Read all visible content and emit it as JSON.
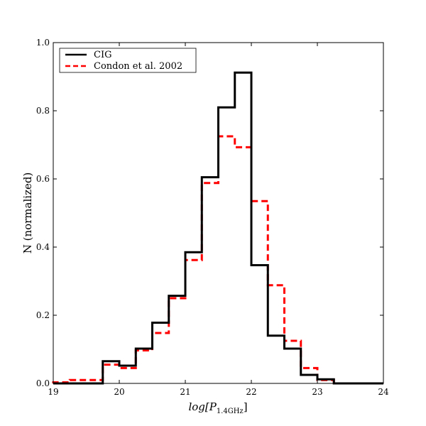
{
  "chart_data": {
    "type": "step-histogram",
    "title": "",
    "xlabel": "log[P",
    "xlabel_sub": "1.4GHz",
    "xlabel_close": "]",
    "ylabel": "N (normalized)",
    "xlim": [
      19,
      24
    ],
    "ylim": [
      0,
      1.0
    ],
    "xticks": [
      19,
      20,
      21,
      22,
      23,
      24
    ],
    "xtick_labels": [
      "19",
      "20",
      "21",
      "22",
      "23",
      "24"
    ],
    "yticks": [
      0,
      0.2,
      0.4,
      0.6,
      0.8,
      1.0
    ],
    "ytick_labels": [
      "0.0",
      "0.2",
      "0.4",
      "0.6",
      "0.8",
      "1.0"
    ],
    "legend_position": "top-left",
    "bin_edges": [
      19.0,
      19.25,
      19.5,
      19.75,
      20.0,
      20.25,
      20.5,
      20.75,
      21.0,
      21.25,
      21.5,
      21.75,
      22.0,
      22.25,
      22.5,
      22.75,
      23.0,
      23.25,
      23.5,
      23.75,
      24.0
    ],
    "series": [
      {
        "name": "CIG",
        "color": "#000000",
        "dash": "solid",
        "values": [
          0.0,
          0.0,
          0.0,
          0.065,
          0.052,
          0.102,
          0.178,
          0.257,
          0.385,
          0.605,
          0.81,
          0.912,
          0.347,
          0.14,
          0.102,
          0.025,
          0.012,
          0.0,
          0.0,
          0.0
        ]
      },
      {
        "name": "Condon et al. 2002",
        "color": "#ff0000",
        "dash": "dashed",
        "values": [
          0.003,
          0.01,
          0.01,
          0.055,
          0.045,
          0.097,
          0.148,
          0.25,
          0.362,
          0.588,
          0.725,
          0.693,
          0.535,
          0.288,
          0.125,
          0.045,
          0.01,
          0.0,
          0.0,
          0.0
        ]
      }
    ]
  }
}
